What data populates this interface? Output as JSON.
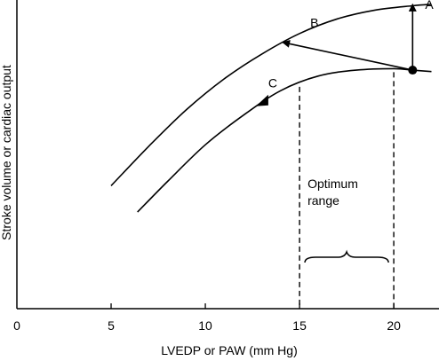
{
  "chart_data": {
    "type": "line",
    "xlabel": "LVEDP or PAW (mm Hg)",
    "ylabel": "Stroke volume or cardiac output",
    "xlim": [
      0,
      22.4
    ],
    "x_ticks": [
      0,
      5,
      10,
      15,
      20
    ],
    "y_ticks_shown": false,
    "grid": false,
    "series": [
      {
        "x": [
          5,
          7,
          9,
          11,
          13,
          15,
          17,
          19,
          21,
          22
        ],
        "y": [
          84,
          111,
          136,
          157,
          174,
          188,
          198,
          204,
          207,
          208
        ]
      },
      {
        "x": [
          6.4,
          8,
          10,
          12,
          14,
          16,
          18,
          20,
          21,
          22
        ],
        "y": [
          66,
          87,
          112,
          132,
          149,
          159,
          163,
          164,
          163,
          162
        ]
      }
    ],
    "optimum_range": {
      "x_start": 15,
      "x_end": 20,
      "label": [
        "Optimum",
        "range"
      ]
    },
    "annotations": [
      {
        "label": "A",
        "kind": "arrow",
        "from": [
          21,
          163
        ],
        "to": [
          21,
          208
        ]
      },
      {
        "label": "B",
        "kind": "arrow",
        "from": [
          21,
          163
        ],
        "to": [
          14.1,
          182
        ]
      },
      {
        "label": "C",
        "kind": "arrow-on-curve",
        "at": [
          13.2,
          142
        ]
      }
    ],
    "point": {
      "x": 21,
      "y": 163
    }
  }
}
